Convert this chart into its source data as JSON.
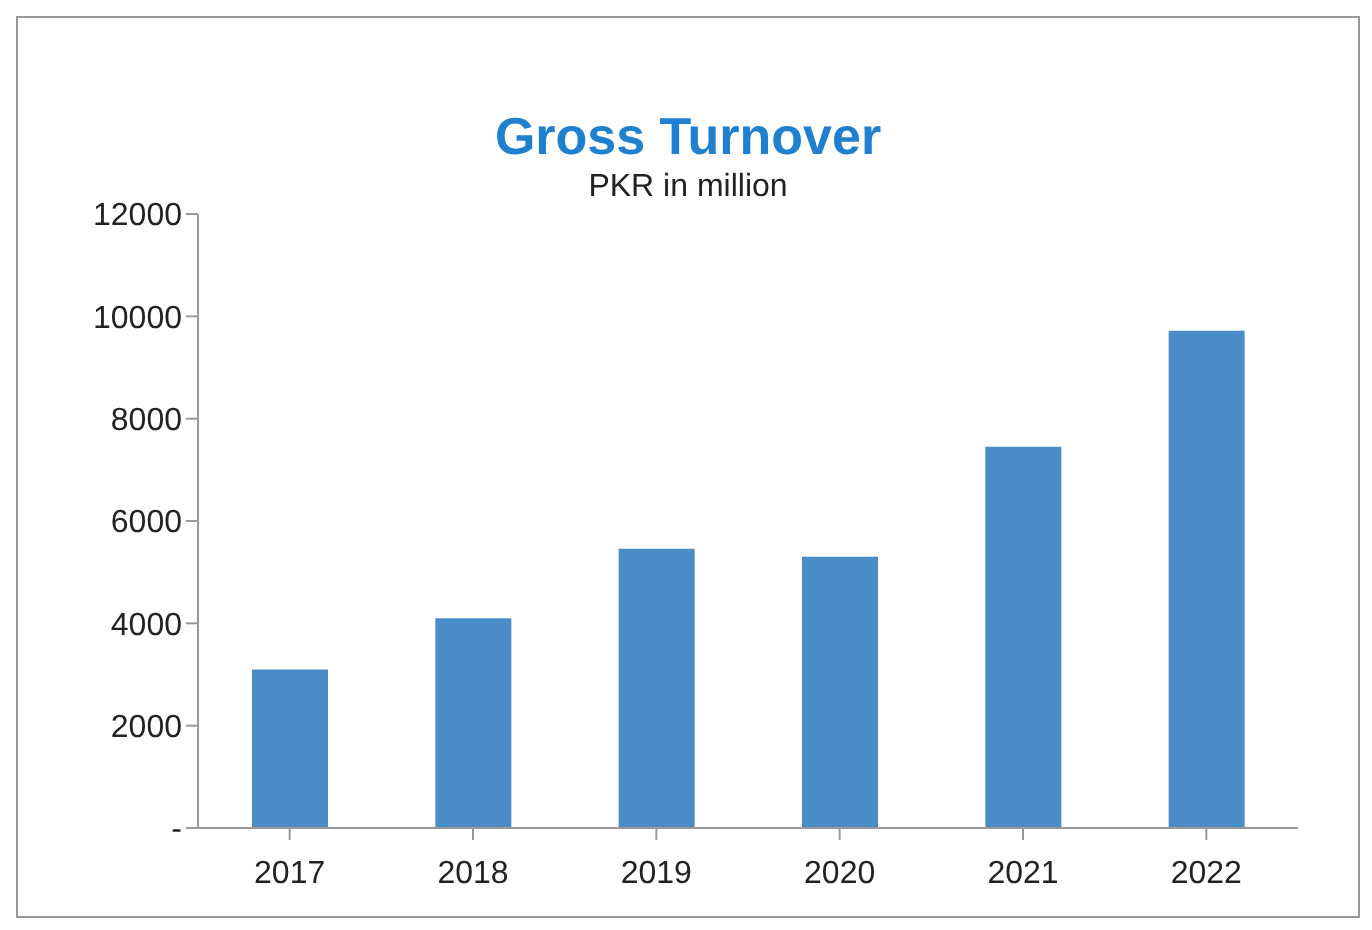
{
  "chart_data": {
    "type": "bar",
    "title": "Gross Turnover",
    "subtitle": "PKR in million",
    "categories": [
      "2017",
      "2018",
      "2019",
      "2020",
      "2021",
      "2022"
    ],
    "values": [
      3100,
      4100,
      5460,
      5300,
      7450,
      9720
    ],
    "color": "#4a8cc8",
    "ylim": [
      0,
      12000
    ],
    "yticks": [
      {
        "value": 0,
        "label": "-"
      },
      2000,
      4000,
      6000,
      8000,
      10000,
      12000
    ],
    "grid": false,
    "legend": false
  }
}
